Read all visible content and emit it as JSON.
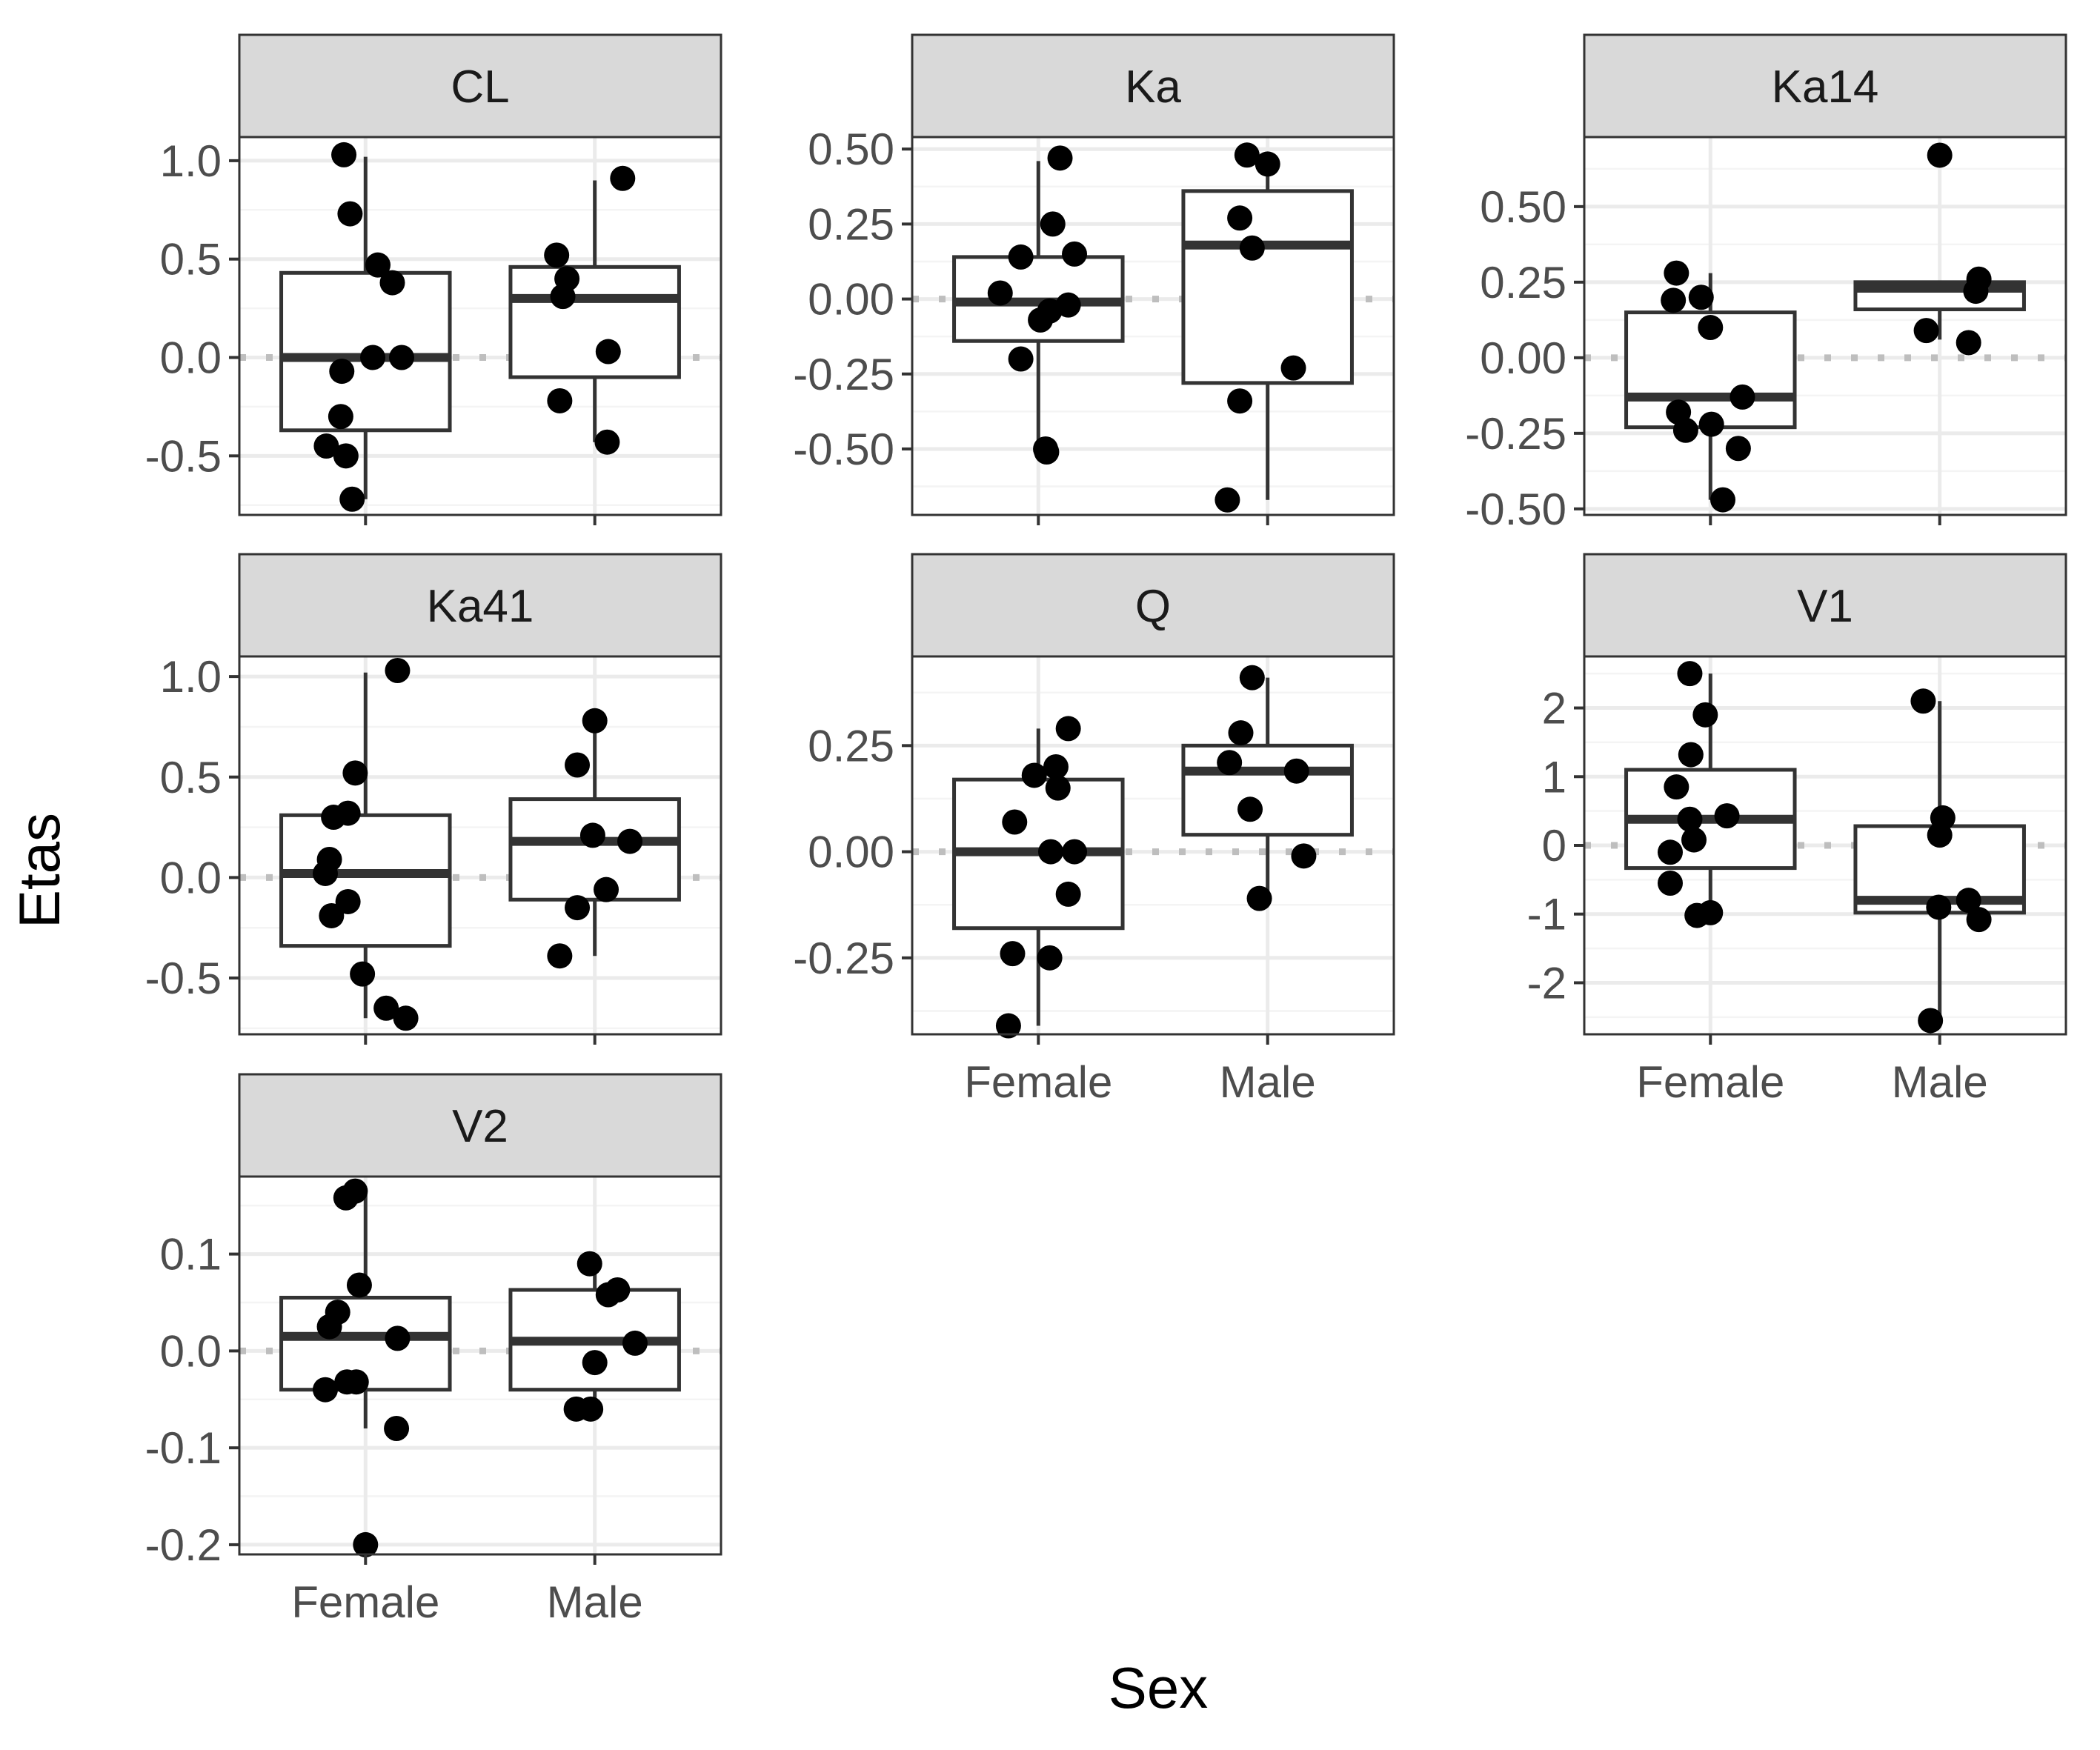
{
  "colors": {
    "strip_fill": "#d9d9d9",
    "panel_border": "#333333",
    "grid_major": "#ebebeb",
    "grid_minor": "#f4f4f4",
    "box_line": "#333333",
    "point": "#000000",
    "reference_line": "#bebebe"
  },
  "chart_data": {
    "type": "boxplot",
    "layout": "facet_wrap",
    "xlabel": "Sex",
    "ylabel": "Etas",
    "categories": [
      "Female",
      "Male"
    ],
    "reference_line": {
      "y": 0,
      "style": "dotted"
    },
    "grid": true,
    "facets": [
      {
        "name": "CL",
        "ylim": [
          -0.8,
          1.12
        ],
        "yticks": [
          -0.5,
          0.0,
          0.5,
          1.0
        ],
        "ytick_labels": [
          "-0.5",
          "0.0",
          "0.5",
          "1.0"
        ],
        "boxes": [
          {
            "category": "Female",
            "lower_whisker": -0.72,
            "q1": -0.37,
            "median": 0.0,
            "q3": 0.43,
            "upper_whisker": 1.02
          },
          {
            "category": "Male",
            "lower_whisker": -0.43,
            "q1": -0.1,
            "median": 0.3,
            "q3": 0.46,
            "upper_whisker": 0.9
          }
        ],
        "points": [
          {
            "category": "Female",
            "jitter": -0.38,
            "y": -0.45
          },
          {
            "category": "Female",
            "jitter": -0.21,
            "y": 1.03
          },
          {
            "category": "Female",
            "jitter": -0.15,
            "y": 0.73
          },
          {
            "category": "Female",
            "jitter": -0.23,
            "y": -0.07
          },
          {
            "category": "Female",
            "jitter": -0.24,
            "y": -0.3
          },
          {
            "category": "Female",
            "jitter": -0.19,
            "y": -0.5
          },
          {
            "category": "Female",
            "jitter": -0.13,
            "y": -0.72
          },
          {
            "category": "Female",
            "jitter": 0.12,
            "y": 0.47
          },
          {
            "category": "Female",
            "jitter": 0.26,
            "y": 0.38
          },
          {
            "category": "Female",
            "jitter": 0.07,
            "y": 0.0
          },
          {
            "category": "Female",
            "jitter": 0.35,
            "y": 0.0
          },
          {
            "category": "Male",
            "jitter": -0.37,
            "y": 0.52
          },
          {
            "category": "Male",
            "jitter": -0.27,
            "y": 0.4
          },
          {
            "category": "Male",
            "jitter": -0.31,
            "y": 0.31
          },
          {
            "category": "Male",
            "jitter": -0.34,
            "y": -0.22
          },
          {
            "category": "Male",
            "jitter": 0.13,
            "y": 0.03
          },
          {
            "category": "Male",
            "jitter": 0.12,
            "y": -0.43
          },
          {
            "category": "Male",
            "jitter": 0.27,
            "y": 0.91
          }
        ]
      },
      {
        "name": "Ka",
        "ylim": [
          -0.72,
          0.54
        ],
        "yticks": [
          -0.5,
          -0.25,
          0.0,
          0.25,
          0.5
        ],
        "ytick_labels": [
          "-0.50",
          "-0.25",
          "0.00",
          "0.25",
          "0.50"
        ],
        "boxes": [
          {
            "category": "Female",
            "lower_whisker": -0.51,
            "q1": -0.14,
            "median": -0.01,
            "q3": 0.14,
            "upper_whisker": 0.46
          },
          {
            "category": "Male",
            "lower_whisker": -0.67,
            "q1": -0.28,
            "median": 0.18,
            "q3": 0.36,
            "upper_whisker": 0.48
          }
        ],
        "points": [
          {
            "category": "Female",
            "jitter": -0.37,
            "y": 0.02
          },
          {
            "category": "Female",
            "jitter": -0.17,
            "y": 0.14
          },
          {
            "category": "Female",
            "jitter": -0.17,
            "y": -0.2
          },
          {
            "category": "Female",
            "jitter": 0.02,
            "y": -0.07
          },
          {
            "category": "Female",
            "jitter": 0.08,
            "y": -0.51
          },
          {
            "category": "Female",
            "jitter": 0.07,
            "y": -0.5
          },
          {
            "category": "Female",
            "jitter": 0.11,
            "y": -0.04
          },
          {
            "category": "Female",
            "jitter": 0.14,
            "y": 0.25
          },
          {
            "category": "Female",
            "jitter": 0.21,
            "y": 0.47
          },
          {
            "category": "Female",
            "jitter": 0.29,
            "y": -0.02
          },
          {
            "category": "Female",
            "jitter": 0.35,
            "y": 0.15
          },
          {
            "category": "Male",
            "jitter": -0.39,
            "y": -0.67
          },
          {
            "category": "Male",
            "jitter": -0.27,
            "y": 0.27
          },
          {
            "category": "Male",
            "jitter": -0.27,
            "y": -0.34
          },
          {
            "category": "Male",
            "jitter": -0.2,
            "y": 0.48
          },
          {
            "category": "Male",
            "jitter": -0.15,
            "y": 0.17
          },
          {
            "category": "Male",
            "jitter": 0.0,
            "y": 0.45
          },
          {
            "category": "Male",
            "jitter": 0.25,
            "y": -0.23
          }
        ]
      },
      {
        "name": "Ka14",
        "ylim": [
          -0.52,
          0.73
        ],
        "yticks": [
          -0.5,
          -0.25,
          0.0,
          0.25,
          0.5
        ],
        "ytick_labels": [
          "-0.50",
          "-0.25",
          "0.00",
          "0.25",
          "0.50"
        ],
        "boxes": [
          {
            "category": "Female",
            "lower_whisker": -0.47,
            "q1": -0.23,
            "median": -0.13,
            "q3": 0.15,
            "upper_whisker": 0.28
          },
          {
            "category": "Male",
            "lower_whisker": 0.06,
            "q1": 0.16,
            "median": 0.23,
            "q3": 0.25,
            "upper_whisker": 0.25
          }
        ],
        "points": [
          {
            "category": "Female",
            "jitter": -0.36,
            "y": 0.19
          },
          {
            "category": "Female",
            "jitter": -0.33,
            "y": 0.28
          },
          {
            "category": "Female",
            "jitter": -0.31,
            "y": -0.18
          },
          {
            "category": "Female",
            "jitter": -0.24,
            "y": -0.24
          },
          {
            "category": "Female",
            "jitter": -0.09,
            "y": 0.2
          },
          {
            "category": "Female",
            "jitter": 0.0,
            "y": 0.1
          },
          {
            "category": "Female",
            "jitter": 0.01,
            "y": -0.22
          },
          {
            "category": "Female",
            "jitter": 0.12,
            "y": -0.47
          },
          {
            "category": "Female",
            "jitter": 0.27,
            "y": -0.3
          },
          {
            "category": "Female",
            "jitter": 0.31,
            "y": -0.13
          },
          {
            "category": "Male",
            "jitter": -0.13,
            "y": 0.09
          },
          {
            "category": "Male",
            "jitter": 0.0,
            "y": 0.67
          },
          {
            "category": "Male",
            "jitter": 0.28,
            "y": 0.05
          },
          {
            "category": "Male",
            "jitter": 0.35,
            "y": 0.22
          },
          {
            "category": "Male",
            "jitter": 0.38,
            "y": 0.26
          }
        ]
      },
      {
        "name": "Ka41",
        "ylim": [
          -0.78,
          1.1
        ],
        "yticks": [
          -0.5,
          0.0,
          0.5,
          1.0
        ],
        "ytick_labels": [
          "-0.5",
          "0.0",
          "0.5",
          "1.0"
        ],
        "boxes": [
          {
            "category": "Female",
            "lower_whisker": -0.7,
            "q1": -0.34,
            "median": 0.02,
            "q3": 0.31,
            "upper_whisker": 1.02
          },
          {
            "category": "Male",
            "lower_whisker": -0.39,
            "q1": -0.11,
            "median": 0.18,
            "q3": 0.39,
            "upper_whisker": 0.78
          }
        ],
        "points": [
          {
            "category": "Female",
            "jitter": -0.39,
            "y": 0.02
          },
          {
            "category": "Female",
            "jitter": -0.35,
            "y": 0.09
          },
          {
            "category": "Female",
            "jitter": -0.33,
            "y": -0.19
          },
          {
            "category": "Female",
            "jitter": -0.31,
            "y": 0.3
          },
          {
            "category": "Female",
            "jitter": -0.17,
            "y": 0.32
          },
          {
            "category": "Female",
            "jitter": -0.17,
            "y": -0.12
          },
          {
            "category": "Female",
            "jitter": -0.1,
            "y": 0.52
          },
          {
            "category": "Female",
            "jitter": -0.03,
            "y": -0.48
          },
          {
            "category": "Female",
            "jitter": 0.2,
            "y": -0.65
          },
          {
            "category": "Female",
            "jitter": 0.31,
            "y": 1.03
          },
          {
            "category": "Female",
            "jitter": 0.39,
            "y": -0.7
          },
          {
            "category": "Male",
            "jitter": -0.34,
            "y": -0.39
          },
          {
            "category": "Male",
            "jitter": -0.17,
            "y": -0.15
          },
          {
            "category": "Male",
            "jitter": -0.17,
            "y": 0.56
          },
          {
            "category": "Male",
            "jitter": 0.0,
            "y": 0.78
          },
          {
            "category": "Male",
            "jitter": -0.02,
            "y": 0.21
          },
          {
            "category": "Male",
            "jitter": 0.11,
            "y": -0.06
          },
          {
            "category": "Male",
            "jitter": 0.34,
            "y": 0.18
          }
        ]
      },
      {
        "name": "Q",
        "ylim": [
          -0.43,
          0.46
        ],
        "yticks": [
          -0.25,
          0.0,
          0.25
        ],
        "ytick_labels": [
          "-0.25",
          "0.00",
          "0.25"
        ],
        "boxes": [
          {
            "category": "Female",
            "lower_whisker": -0.41,
            "q1": -0.18,
            "median": 0.0,
            "q3": 0.17,
            "upper_whisker": 0.29
          },
          {
            "category": "Male",
            "lower_whisker": -0.1,
            "q1": 0.04,
            "median": 0.19,
            "q3": 0.25,
            "upper_whisker": 0.41
          }
        ],
        "points": [
          {
            "category": "Female",
            "jitter": -0.29,
            "y": -0.41
          },
          {
            "category": "Female",
            "jitter": -0.25,
            "y": -0.24
          },
          {
            "category": "Female",
            "jitter": -0.23,
            "y": 0.07
          },
          {
            "category": "Female",
            "jitter": -0.04,
            "y": 0.18
          },
          {
            "category": "Female",
            "jitter": 0.11,
            "y": -0.25
          },
          {
            "category": "Female",
            "jitter": 0.17,
            "y": 0.2
          },
          {
            "category": "Female",
            "jitter": 0.19,
            "y": 0.15
          },
          {
            "category": "Female",
            "jitter": 0.12,
            "y": 0.0
          },
          {
            "category": "Female",
            "jitter": 0.29,
            "y": -0.1
          },
          {
            "category": "Female",
            "jitter": 0.29,
            "y": 0.29
          },
          {
            "category": "Female",
            "jitter": 0.35,
            "y": 0.0
          },
          {
            "category": "Male",
            "jitter": -0.37,
            "y": 0.21
          },
          {
            "category": "Male",
            "jitter": -0.26,
            "y": 0.28
          },
          {
            "category": "Male",
            "jitter": -0.17,
            "y": 0.1
          },
          {
            "category": "Male",
            "jitter": -0.15,
            "y": 0.41
          },
          {
            "category": "Male",
            "jitter": -0.08,
            "y": -0.11
          },
          {
            "category": "Male",
            "jitter": 0.28,
            "y": 0.19
          },
          {
            "category": "Male",
            "jitter": 0.35,
            "y": -0.01
          }
        ]
      },
      {
        "name": "V1",
        "ylim": [
          -2.75,
          2.75
        ],
        "yticks": [
          -2,
          -1,
          0,
          1,
          2
        ],
        "ytick_labels": [
          "-2",
          "-1",
          "0",
          "1",
          "2"
        ],
        "boxes": [
          {
            "category": "Female",
            "lower_whisker": -1.0,
            "q1": -0.33,
            "median": 0.38,
            "q3": 1.1,
            "upper_whisker": 2.5
          },
          {
            "category": "Male",
            "lower_whisker": -2.5,
            "q1": -0.98,
            "median": -0.8,
            "q3": 0.28,
            "upper_whisker": 2.1
          }
        ],
        "points": [
          {
            "category": "Female",
            "jitter": -0.39,
            "y": -0.55
          },
          {
            "category": "Female",
            "jitter": -0.39,
            "y": -0.1
          },
          {
            "category": "Female",
            "jitter": -0.33,
            "y": 0.85
          },
          {
            "category": "Female",
            "jitter": -0.2,
            "y": 2.5
          },
          {
            "category": "Female",
            "jitter": -0.19,
            "y": 1.32
          },
          {
            "category": "Female",
            "jitter": -0.2,
            "y": 0.38
          },
          {
            "category": "Female",
            "jitter": -0.16,
            "y": 0.08
          },
          {
            "category": "Female",
            "jitter": -0.13,
            "y": -1.02
          },
          {
            "category": "Female",
            "jitter": -0.05,
            "y": 1.9
          },
          {
            "category": "Female",
            "jitter": 0.0,
            "y": -0.98
          },
          {
            "category": "Female",
            "jitter": 0.16,
            "y": 0.43
          },
          {
            "category": "Male",
            "jitter": -0.16,
            "y": 2.1
          },
          {
            "category": "Male",
            "jitter": -0.09,
            "y": -2.55
          },
          {
            "category": "Male",
            "jitter": -0.01,
            "y": -0.9
          },
          {
            "category": "Male",
            "jitter": 0.0,
            "y": 0.15
          },
          {
            "category": "Male",
            "jitter": 0.03,
            "y": 0.4
          },
          {
            "category": "Male",
            "jitter": 0.28,
            "y": -0.8
          },
          {
            "category": "Male",
            "jitter": 0.38,
            "y": -1.08
          }
        ]
      },
      {
        "name": "V2",
        "ylim": [
          -0.21,
          0.18
        ],
        "yticks": [
          -0.2,
          -0.1,
          0.0,
          0.1
        ],
        "ytick_labels": [
          "-0.2",
          "-0.1",
          "0.0",
          "0.1"
        ],
        "boxes": [
          {
            "category": "Female",
            "lower_whisker": -0.08,
            "q1": -0.04,
            "median": 0.015,
            "q3": 0.055,
            "upper_whisker": 0.165
          },
          {
            "category": "Male",
            "lower_whisker": -0.06,
            "q1": -0.04,
            "median": 0.01,
            "q3": 0.063,
            "upper_whisker": 0.09
          }
        ],
        "points": [
          {
            "category": "Female",
            "jitter": -0.39,
            "y": -0.04
          },
          {
            "category": "Female",
            "jitter": -0.35,
            "y": 0.025
          },
          {
            "category": "Female",
            "jitter": -0.27,
            "y": 0.04
          },
          {
            "category": "Female",
            "jitter": -0.19,
            "y": 0.158
          },
          {
            "category": "Female",
            "jitter": -0.18,
            "y": -0.032
          },
          {
            "category": "Female",
            "jitter": -0.1,
            "y": 0.165
          },
          {
            "category": "Female",
            "jitter": -0.09,
            "y": -0.032
          },
          {
            "category": "Female",
            "jitter": -0.06,
            "y": 0.068
          },
          {
            "category": "Female",
            "jitter": 0.0,
            "y": -0.2
          },
          {
            "category": "Female",
            "jitter": 0.3,
            "y": -0.08
          },
          {
            "category": "Female",
            "jitter": 0.31,
            "y": 0.013
          },
          {
            "category": "Male",
            "jitter": -0.18,
            "y": -0.06
          },
          {
            "category": "Male",
            "jitter": -0.05,
            "y": 0.09
          },
          {
            "category": "Male",
            "jitter": -0.04,
            "y": -0.06
          },
          {
            "category": "Male",
            "jitter": 0.0,
            "y": -0.012
          },
          {
            "category": "Male",
            "jitter": 0.13,
            "y": 0.058
          },
          {
            "category": "Male",
            "jitter": 0.22,
            "y": 0.063
          },
          {
            "category": "Male",
            "jitter": 0.39,
            "y": 0.008
          }
        ]
      }
    ]
  }
}
